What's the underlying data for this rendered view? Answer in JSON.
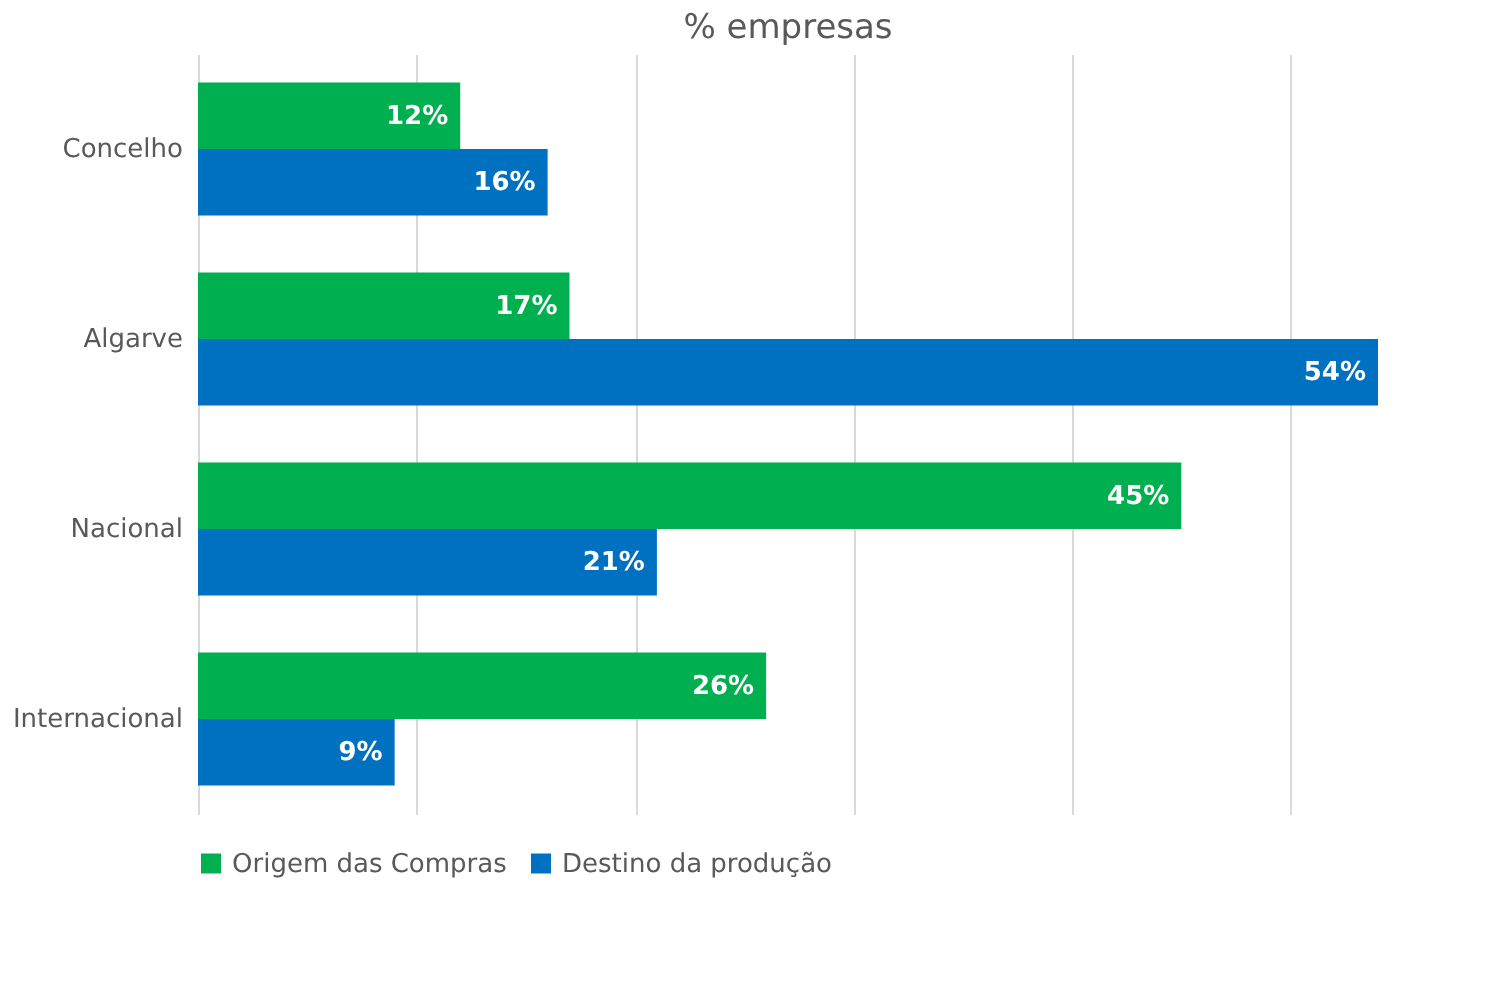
{
  "chart_data": {
    "type": "bar",
    "orientation": "horizontal",
    "title": "% empresas",
    "categories": [
      "Concelho",
      "Algarve",
      "Nacional",
      "Internacional"
    ],
    "series": [
      {
        "name": "Origem das Compras",
        "color": "#00b050",
        "values": [
          12,
          17,
          45,
          26
        ],
        "value_labels": [
          "12%",
          "17%",
          "45%",
          "26%"
        ]
      },
      {
        "name": "Destino da produção",
        "color": "#0070c0",
        "values": [
          16,
          54,
          21,
          9
        ],
        "value_labels": [
          "16%",
          "54%",
          "21%",
          "9%"
        ]
      }
    ],
    "xticks": [
      {
        "value": 0,
        "label": null
      },
      {
        "value": 10,
        "label": null
      },
      {
        "value": 20,
        "label": null
      },
      {
        "value": 30,
        "label": null
      },
      {
        "value": 40,
        "label": null
      },
      {
        "value": 50,
        "label": null
      }
    ],
    "tick_labels": "y",
    "grid": "x",
    "legend": "bottom"
  }
}
